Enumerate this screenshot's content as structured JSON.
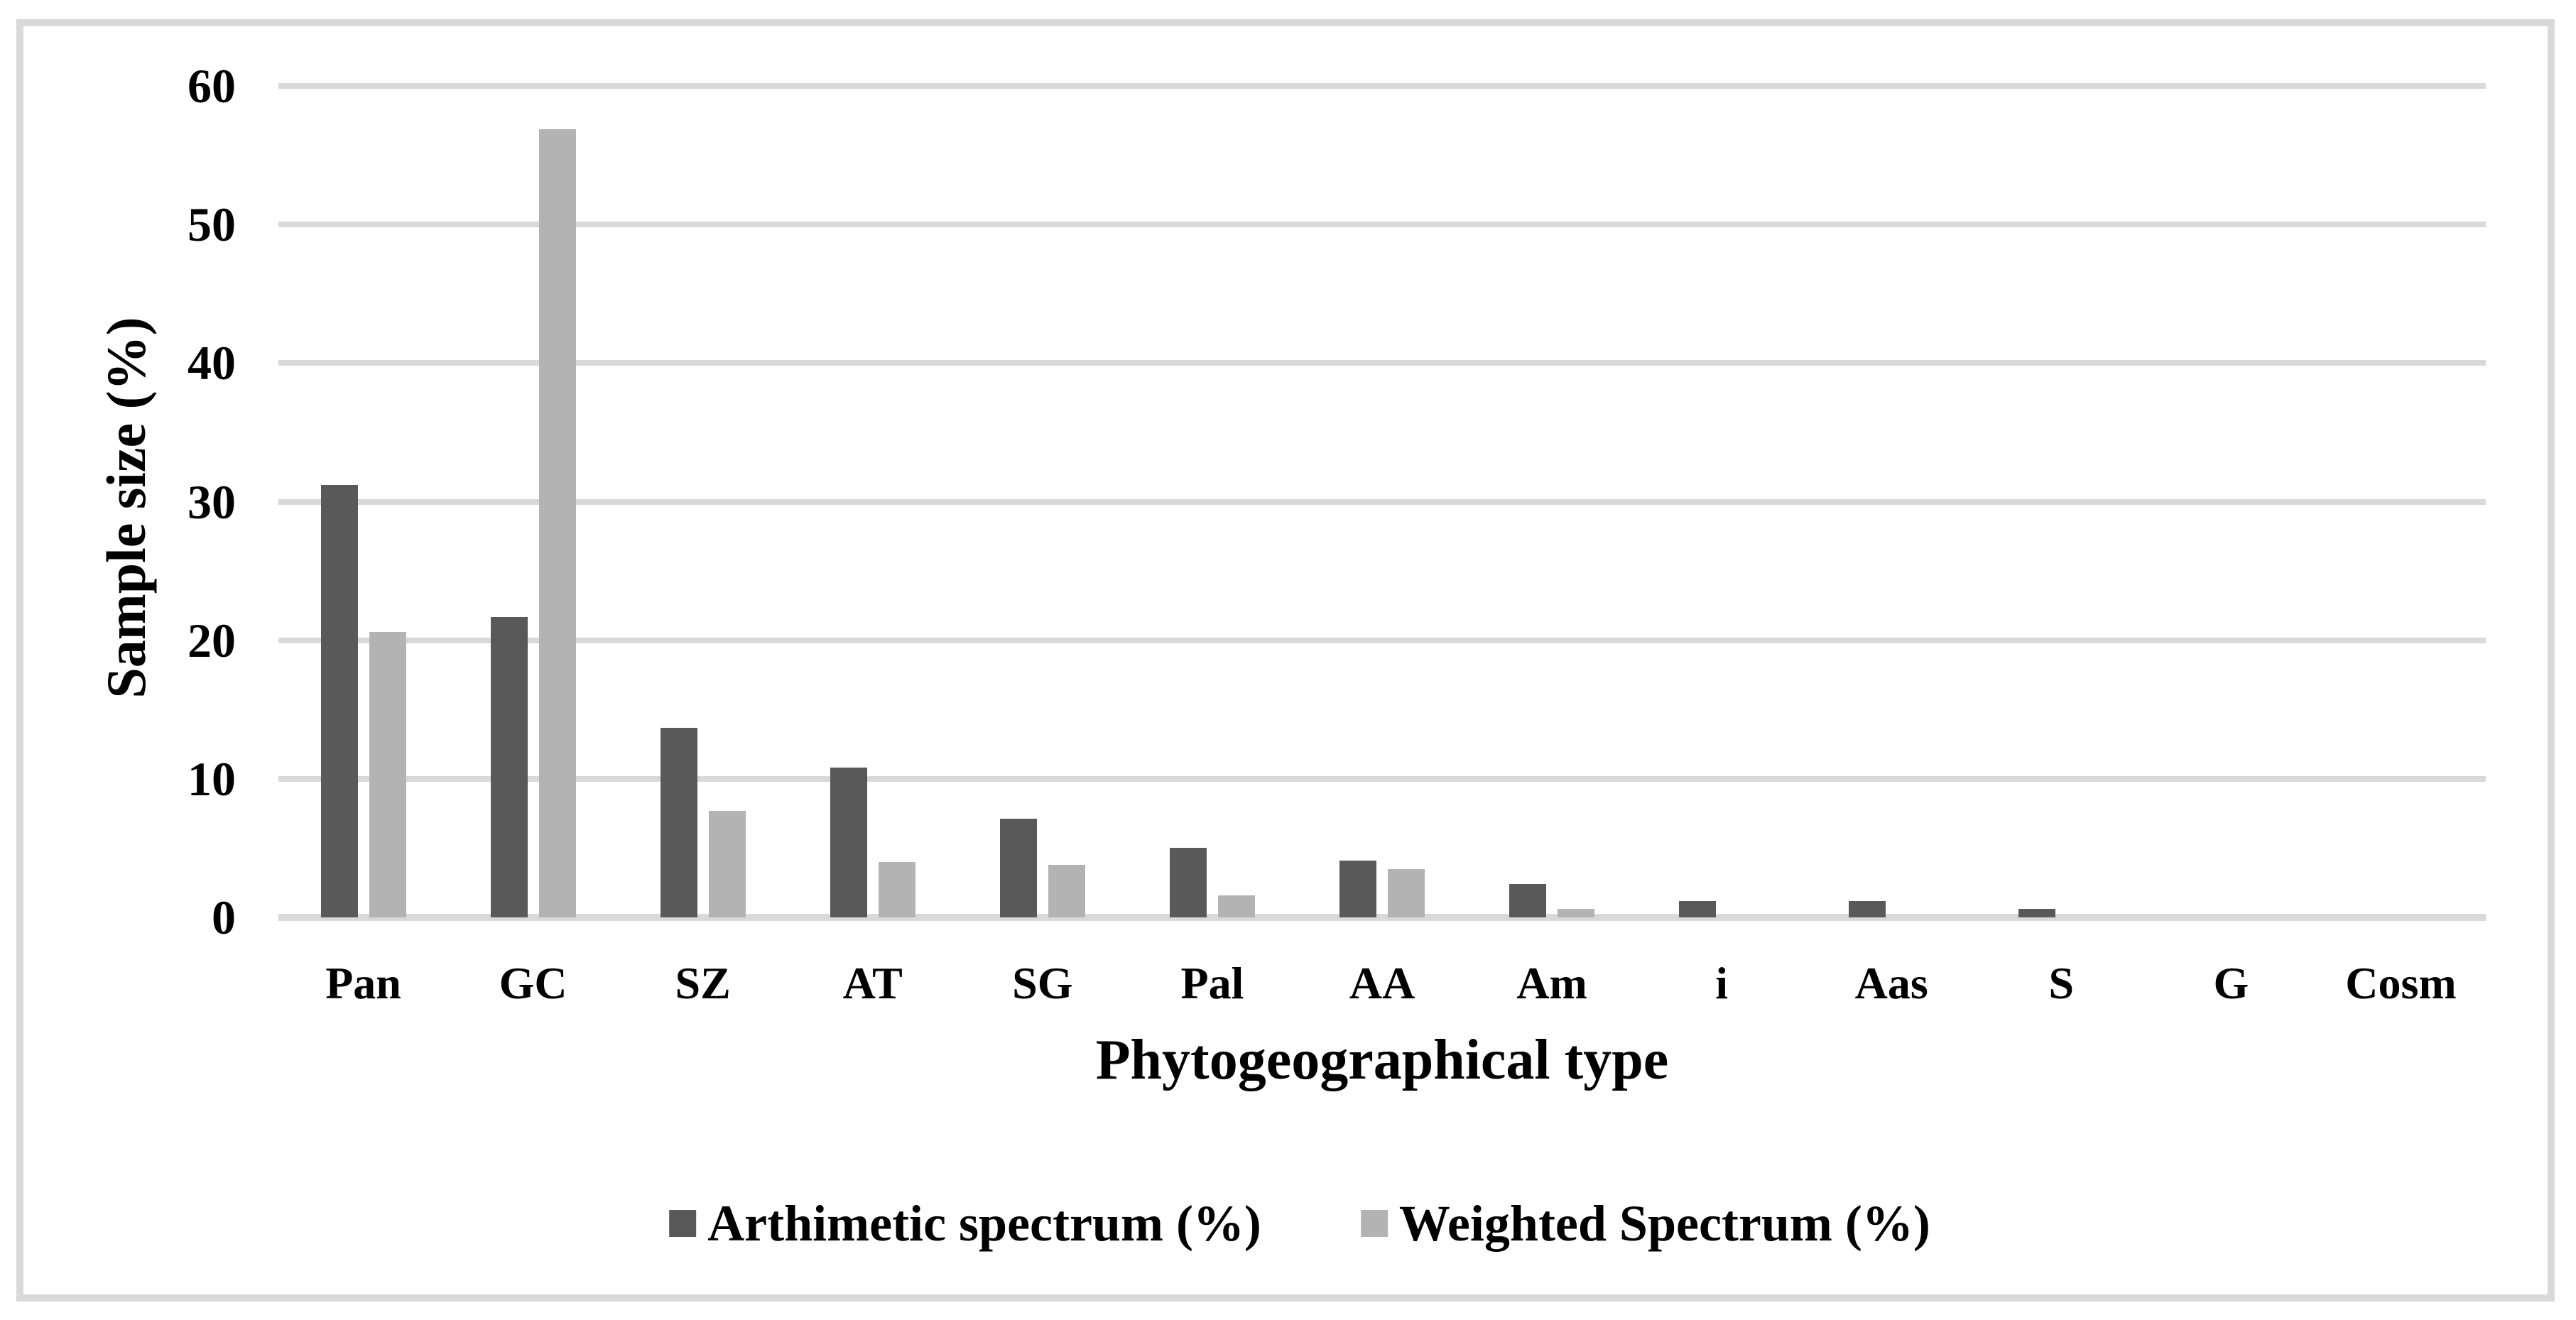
{
  "chart_data": {
    "type": "bar",
    "title": "",
    "xlabel": "Phytogeographical type",
    "ylabel": "Sample size (%)",
    "ylim": [
      0,
      60
    ],
    "yticks": [
      0,
      10,
      20,
      30,
      40,
      50,
      60
    ],
    "grid": true,
    "gridline_color": "#d9d9d9",
    "legend_position": "bottom-center",
    "categories": [
      "Pan",
      "GC",
      "SZ",
      "AT",
      "SG",
      "Pal",
      "AA",
      "Am",
      "i",
      "Aas",
      "S",
      "G",
      "Cosm"
    ],
    "series": [
      {
        "name": "Arthimetic spectrum (%)",
        "color": "#595959",
        "values": [
          31.2,
          21.7,
          13.7,
          10.8,
          7.1,
          5.0,
          4.1,
          2.4,
          1.2,
          1.2,
          0.6,
          0,
          0
        ]
      },
      {
        "name": "Weighted Spectrum (%)",
        "color": "#b3b3b3",
        "values": [
          20.6,
          56.9,
          7.7,
          4.0,
          3.8,
          1.6,
          3.5,
          0.6,
          0,
          0,
          0,
          0,
          0
        ]
      }
    ]
  },
  "colors": {
    "frame": "#d9d9d9",
    "text": "#000000"
  }
}
